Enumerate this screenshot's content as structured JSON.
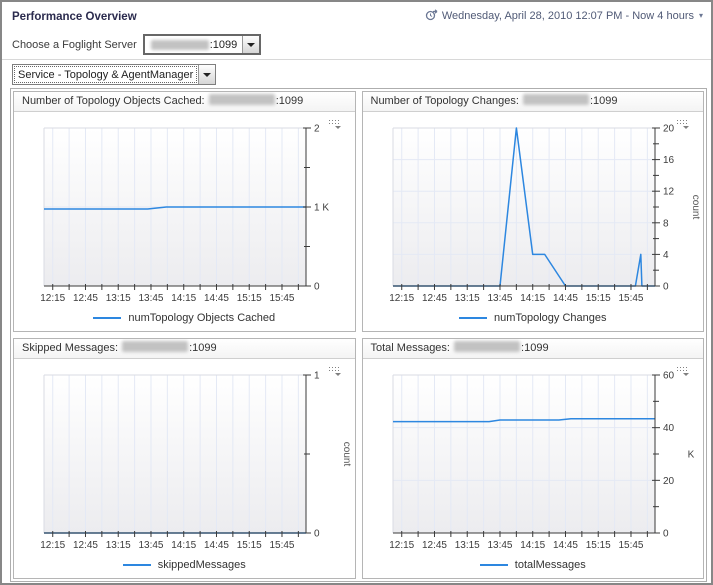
{
  "header": {
    "title": "Performance Overview",
    "time_label": "Wednesday, April 28, 2010 12:07 PM - Now 4 hours",
    "time_caret": "▾"
  },
  "server_picker": {
    "label": "Choose a Foglight Server",
    "value_suffix": ":1099"
  },
  "service_picker": {
    "value": "Service - Topology & AgentManager"
  },
  "colors": {
    "line": "#2d87e0",
    "grid": "#e4e9f5",
    "axis": "#3a3a3a",
    "plot_gradient_top": "#ffffff",
    "plot_gradient_bottom": "#ececef"
  },
  "chart_data": [
    {
      "type": "line",
      "title": "Number of Topology Objects Cached:",
      "server_suffix": ":1099",
      "legend": "numTopology Objects Cached",
      "ylim": [
        0,
        2000
      ],
      "y_major_ticks": [
        {
          "v": 0,
          "label": "0"
        },
        {
          "v": 1000,
          "label": "1 K"
        },
        {
          "v": 2000,
          "label": "2"
        }
      ],
      "y_minor_ticks": [
        500,
        1500
      ],
      "y_gridlines": [
        1000
      ],
      "ylabel": "",
      "ylabel_rotated": false,
      "unit_label": "",
      "x_domain": [
        0,
        240
      ],
      "x_major_ticks": [
        {
          "m": 8,
          "label": "12:15"
        },
        {
          "m": 38,
          "label": "12:45"
        },
        {
          "m": 68,
          "label": "13:15"
        },
        {
          "m": 98,
          "label": "13:45"
        },
        {
          "m": 128,
          "label": "14:15"
        },
        {
          "m": 158,
          "label": "14:45"
        },
        {
          "m": 188,
          "label": "15:15"
        },
        {
          "m": 218,
          "label": "15:45"
        }
      ],
      "x_minor_ticks": [
        8,
        23,
        38,
        53,
        68,
        83,
        98,
        113,
        128,
        143,
        158,
        173,
        188,
        203,
        218,
        233
      ],
      "points": [
        [
          0,
          975
        ],
        [
          95,
          975
        ],
        [
          112,
          1000
        ],
        [
          240,
          1000
        ]
      ]
    },
    {
      "type": "line",
      "title": "Number of Topology Changes:",
      "server_suffix": ":1099",
      "legend": "numTopology Changes",
      "ylim": [
        0,
        20
      ],
      "y_major_ticks": [
        {
          "v": 0,
          "label": "0"
        },
        {
          "v": 4,
          "label": "4"
        },
        {
          "v": 8,
          "label": "8"
        },
        {
          "v": 12,
          "label": "12"
        },
        {
          "v": 16,
          "label": "16"
        },
        {
          "v": 20,
          "label": "20"
        }
      ],
      "y_minor_ticks": [
        2,
        6,
        10,
        14,
        18
      ],
      "y_gridlines": [
        4,
        8,
        12,
        16
      ],
      "ylabel": "count",
      "ylabel_rotated": true,
      "unit_label": "",
      "x_domain": [
        0,
        240
      ],
      "x_major_ticks": [
        {
          "m": 8,
          "label": "12:15"
        },
        {
          "m": 38,
          "label": "12:45"
        },
        {
          "m": 68,
          "label": "13:15"
        },
        {
          "m": 98,
          "label": "13:45"
        },
        {
          "m": 128,
          "label": "14:15"
        },
        {
          "m": 158,
          "label": "14:45"
        },
        {
          "m": 188,
          "label": "15:15"
        },
        {
          "m": 218,
          "label": "15:45"
        }
      ],
      "x_minor_ticks": [
        8,
        23,
        38,
        53,
        68,
        83,
        98,
        113,
        128,
        143,
        158,
        173,
        188,
        203,
        218,
        233
      ],
      "points": [
        [
          0,
          0
        ],
        [
          98,
          0
        ],
        [
          113,
          20
        ],
        [
          128,
          4
        ],
        [
          139,
          4
        ],
        [
          158,
          0
        ],
        [
          218,
          0
        ],
        [
          222,
          0
        ],
        [
          227,
          4
        ],
        [
          228,
          0
        ],
        [
          240,
          0
        ]
      ]
    },
    {
      "type": "line",
      "title": "Skipped Messages:",
      "server_suffix": ":1099",
      "legend": "skippedMessages",
      "ylim": [
        0,
        1
      ],
      "y_major_ticks": [
        {
          "v": 0,
          "label": "0"
        },
        {
          "v": 1,
          "label": "1"
        }
      ],
      "y_minor_ticks": [
        0.5
      ],
      "y_gridlines": [],
      "ylabel": "count",
      "ylabel_rotated": true,
      "unit_label": "",
      "x_domain": [
        0,
        240
      ],
      "x_major_ticks": [
        {
          "m": 8,
          "label": "12:15"
        },
        {
          "m": 38,
          "label": "12:45"
        },
        {
          "m": 68,
          "label": "13:15"
        },
        {
          "m": 98,
          "label": "13:45"
        },
        {
          "m": 128,
          "label": "14:15"
        },
        {
          "m": 158,
          "label": "14:45"
        },
        {
          "m": 188,
          "label": "15:15"
        },
        {
          "m": 218,
          "label": "15:45"
        }
      ],
      "x_minor_ticks": [
        8,
        23,
        38,
        53,
        68,
        83,
        98,
        113,
        128,
        143,
        158,
        173,
        188,
        203,
        218,
        233
      ],
      "points": [
        [
          0,
          0
        ],
        [
          240,
          0
        ]
      ]
    },
    {
      "type": "line",
      "title": "Total Messages:",
      "server_suffix": ":1099",
      "legend": "totalMessages",
      "ylim": [
        0,
        60000
      ],
      "y_major_ticks": [
        {
          "v": 0,
          "label": "0"
        },
        {
          "v": 20000,
          "label": "20"
        },
        {
          "v": 40000,
          "label": "40"
        },
        {
          "v": 60000,
          "label": "60"
        }
      ],
      "y_minor_ticks": [
        10000,
        30000,
        50000
      ],
      "y_gridlines": [
        20000,
        40000
      ],
      "ylabel": "",
      "ylabel_rotated": false,
      "unit_label": "K",
      "x_domain": [
        0,
        240
      ],
      "x_major_ticks": [
        {
          "m": 8,
          "label": "12:15"
        },
        {
          "m": 38,
          "label": "12:45"
        },
        {
          "m": 68,
          "label": "13:15"
        },
        {
          "m": 98,
          "label": "13:45"
        },
        {
          "m": 128,
          "label": "14:15"
        },
        {
          "m": 158,
          "label": "14:45"
        },
        {
          "m": 188,
          "label": "15:15"
        },
        {
          "m": 218,
          "label": "15:45"
        }
      ],
      "x_minor_ticks": [
        8,
        23,
        38,
        53,
        68,
        83,
        98,
        113,
        128,
        143,
        158,
        173,
        188,
        203,
        218,
        233
      ],
      "points": [
        [
          0,
          42300
        ],
        [
          88,
          42300
        ],
        [
          98,
          42900
        ],
        [
          152,
          42900
        ],
        [
          163,
          43400
        ],
        [
          240,
          43400
        ]
      ]
    }
  ]
}
